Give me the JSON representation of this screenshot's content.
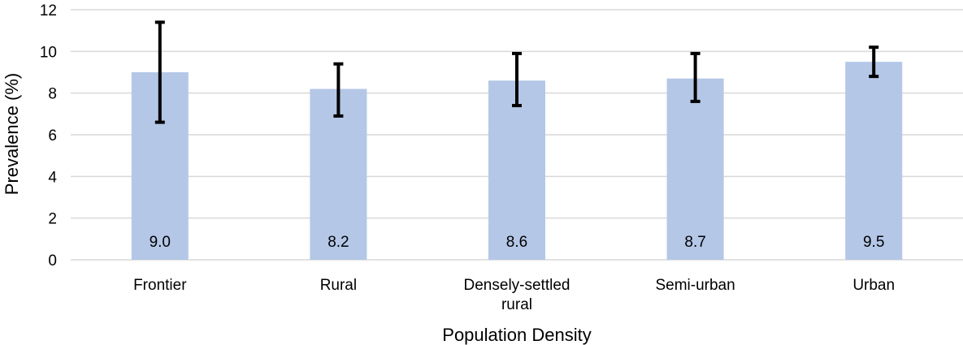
{
  "chart_data": {
    "type": "bar",
    "title": "",
    "xlabel": "Population Density",
    "ylabel": "Prevalence (%)",
    "ylim": [
      0,
      12
    ],
    "yticks": [
      0,
      2,
      4,
      6,
      8,
      10,
      12
    ],
    "categories": [
      "Frontier",
      "Rural",
      "Densely-settled rural",
      "Semi-urban",
      "Urban"
    ],
    "category_lines": [
      [
        "Frontier"
      ],
      [
        "Rural"
      ],
      [
        "Densely-settled",
        "rural"
      ],
      [
        "Semi-urban"
      ],
      [
        "Urban"
      ]
    ],
    "values": [
      9.0,
      8.2,
      8.6,
      8.7,
      9.5
    ],
    "data_labels": [
      "9.0",
      "8.2",
      "8.6",
      "8.7",
      "9.5"
    ],
    "error_low": [
      6.6,
      6.9,
      7.4,
      7.6,
      8.8
    ],
    "error_high": [
      11.4,
      9.4,
      9.9,
      9.9,
      10.2
    ],
    "grid": true,
    "legend": "none",
    "bar_color": "#b4c7e7",
    "error_bar_color": "#000000",
    "grid_color": "#d9d9d9"
  }
}
